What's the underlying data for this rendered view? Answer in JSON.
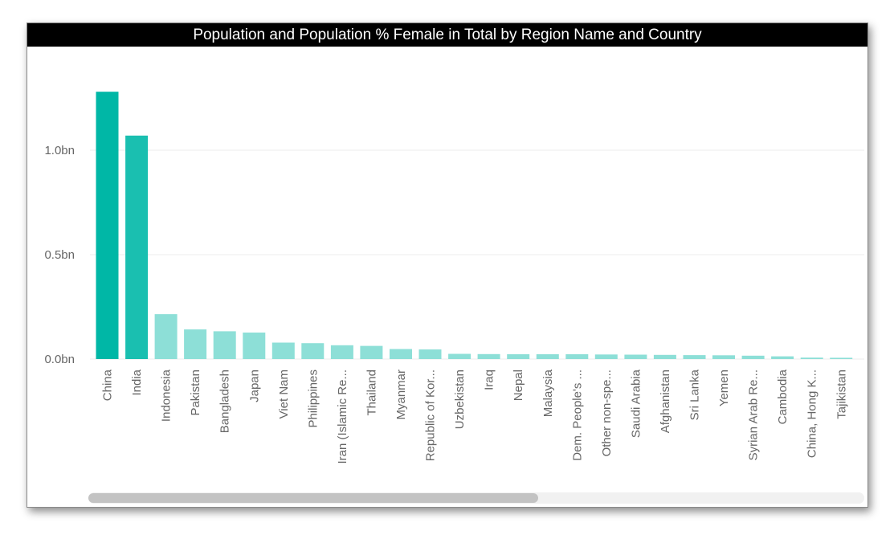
{
  "title": "Population and Population % Female in Total by Region Name and Country",
  "colors": {
    "highlight": "#00b7a6",
    "highlight_dark": "#1abfb0",
    "base": "#8ddfd7",
    "title_bg": "#000000",
    "title_text": "#ffffff"
  },
  "scrollbar": {
    "visible_fraction": 0.58
  },
  "chart_data": {
    "type": "bar",
    "title": "Population and Population % Female in Total by Region Name and Country",
    "xlabel": "",
    "ylabel": "",
    "ylim": [
      0,
      1.3
    ],
    "y_unit": "bn",
    "y_ticks": [
      {
        "value": 0.0,
        "label": "0.0bn"
      },
      {
        "value": 0.5,
        "label": "0.5bn"
      },
      {
        "value": 1.0,
        "label": "1.0bn"
      }
    ],
    "grid": true,
    "legend": "none",
    "categories": [
      "China",
      "India",
      "Indonesia",
      "Pakistan",
      "Bangladesh",
      "Japan",
      "Viet Nam",
      "Philippines",
      "Iran (Islamic Re...",
      "Thailand",
      "Myanmar",
      "Republic of Kor...",
      "Uzbekistan",
      "Iraq",
      "Nepal",
      "Malaysia",
      "Dem. People's ...",
      "Other non-spe...",
      "Saudi Arabia",
      "Afghanistan",
      "Sri Lanka",
      "Yemen",
      "Syrian Arab Re...",
      "Cambodia",
      "China, Hong K...",
      "Tajikistan"
    ],
    "values": [
      1.28,
      1.07,
      0.215,
      0.142,
      0.133,
      0.127,
      0.079,
      0.076,
      0.066,
      0.063,
      0.048,
      0.046,
      0.025,
      0.024,
      0.023,
      0.023,
      0.023,
      0.022,
      0.021,
      0.02,
      0.019,
      0.018,
      0.016,
      0.013,
      0.007,
      0.006
    ],
    "highlighted": [
      0,
      1
    ]
  }
}
